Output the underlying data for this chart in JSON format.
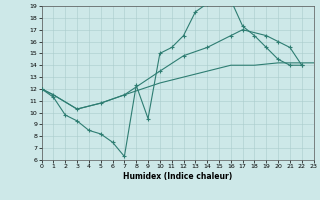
{
  "xlabel": "Humidex (Indice chaleur)",
  "xlim": [
    0,
    23
  ],
  "ylim": [
    6,
    19
  ],
  "xticks": [
    0,
    1,
    2,
    3,
    4,
    5,
    6,
    7,
    8,
    9,
    10,
    11,
    12,
    13,
    14,
    15,
    16,
    17,
    18,
    19,
    20,
    21,
    22,
    23
  ],
  "yticks": [
    6,
    7,
    8,
    9,
    10,
    11,
    12,
    13,
    14,
    15,
    16,
    17,
    18,
    19
  ],
  "bg_color": "#cde8e8",
  "line_color": "#2e7d72",
  "line1_x": [
    0,
    1,
    2,
    3,
    4,
    5,
    6,
    7,
    8,
    9,
    10,
    11,
    12,
    13,
    14,
    15,
    16,
    17,
    18,
    19,
    20,
    21,
    22
  ],
  "line1_y": [
    12,
    11.3,
    9.8,
    9.3,
    8.5,
    8.2,
    7.5,
    6.3,
    12.3,
    9.5,
    15.0,
    15.5,
    16.5,
    18.5,
    19.2,
    19.3,
    19.5,
    17.3,
    16.5,
    15.5,
    14.5,
    14.0,
    14.0
  ],
  "line2_x": [
    0,
    1,
    3,
    5,
    7,
    10,
    12,
    14,
    16,
    17,
    19,
    20,
    21,
    22
  ],
  "line2_y": [
    12,
    11.5,
    10.3,
    10.8,
    11.5,
    13.5,
    14.8,
    15.5,
    16.5,
    17.0,
    16.5,
    16.0,
    15.5,
    14.0
  ],
  "line3_x": [
    0,
    1,
    3,
    5,
    7,
    10,
    12,
    14,
    16,
    18,
    20,
    22,
    23
  ],
  "line3_y": [
    12,
    11.5,
    10.3,
    10.8,
    11.5,
    12.5,
    13.0,
    13.5,
    14.0,
    14.0,
    14.2,
    14.2,
    14.2
  ]
}
